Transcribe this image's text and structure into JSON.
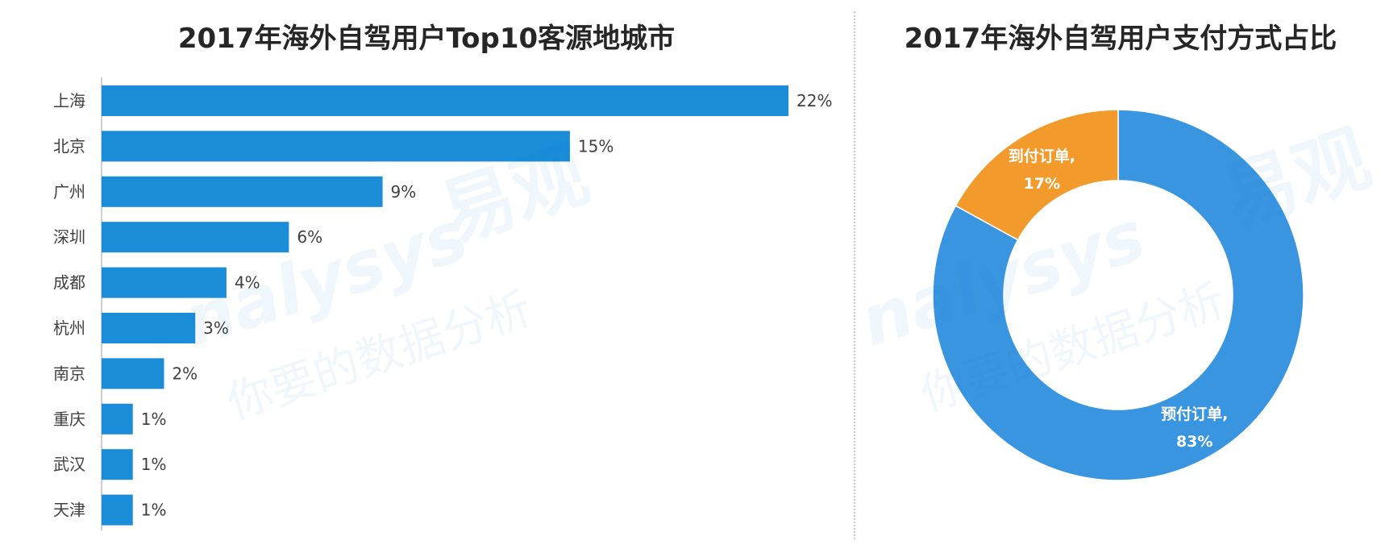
{
  "chart_data": [
    {
      "type": "bar",
      "orientation": "horizontal",
      "title": "2017年海外自驾用户Top10客源地城市",
      "categories": [
        "上海",
        "北京",
        "广州",
        "深圳",
        "成都",
        "杭州",
        "南京",
        "重庆",
        "武汉",
        "天津"
      ],
      "values": [
        22,
        15,
        9,
        6,
        4,
        3,
        2,
        1,
        1,
        1
      ],
      "value_labels": [
        "22%",
        "15%",
        "9%",
        "6%",
        "4%",
        "3%",
        "2%",
        "1%",
        "1%",
        "1%"
      ],
      "unit": "%",
      "xlim": [
        0,
        22
      ],
      "color": "#1a8cd8"
    },
    {
      "type": "pie",
      "donut": true,
      "title": "2017年海外自驾用户支付方式占比",
      "slices": [
        {
          "label": "预付订单,",
          "value": 83,
          "value_label": "83%",
          "color": "#3a95e0"
        },
        {
          "label": "到付订单,",
          "value": 17,
          "value_label": "17%",
          "color": "#f39a2c"
        }
      ]
    }
  ],
  "watermark": {
    "brand": "易观",
    "latin": "nalysys",
    "tagline": "你要的数据分析"
  }
}
